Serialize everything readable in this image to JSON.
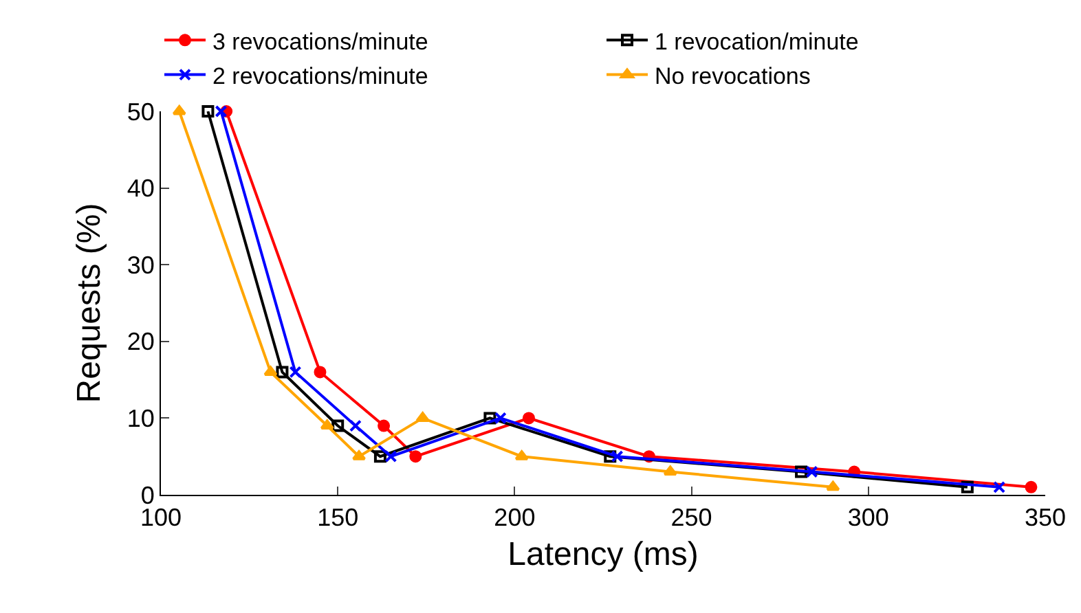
{
  "chart_data": {
    "type": "line",
    "xlabel": "Latency (ms)",
    "ylabel": "Requests (%)",
    "xlim": [
      100,
      350
    ],
    "xticks": [
      100,
      150,
      200,
      250,
      300,
      350
    ],
    "ylim": [
      0,
      50
    ],
    "yticks": [
      0,
      10,
      20,
      30,
      40,
      50
    ],
    "grid": false,
    "legend": "top",
    "line_style": "solid",
    "series": [
      {
        "name": "3 revocations/minute",
        "color": "#ff0000",
        "marker": "circle",
        "x": [
          118.5,
          145,
          163,
          172,
          204,
          238,
          296,
          346
        ],
        "values": [
          50,
          16,
          9,
          5,
          10,
          5,
          3,
          1
        ]
      },
      {
        "name": "1 revocation/minute",
        "color": "#000000",
        "marker": "square",
        "x": [
          113.3,
          134.3,
          150,
          162,
          193,
          227,
          281,
          328
        ],
        "values": [
          50,
          16,
          9,
          5,
          10,
          5,
          3,
          1
        ]
      },
      {
        "name": "2 revocations/minute",
        "color": "#0000ff",
        "marker": "cross",
        "x": [
          117,
          138,
          155,
          165,
          196,
          229,
          284,
          337
        ],
        "values": [
          50,
          16,
          9,
          5,
          10,
          5,
          3,
          1
        ]
      },
      {
        "name": "No revocations",
        "color": "#ffa500",
        "marker": "triangle",
        "x": [
          105.2,
          131,
          147,
          156,
          174,
          202,
          244,
          290
        ],
        "values": [
          50,
          16,
          9,
          5,
          10,
          5,
          3,
          1
        ]
      }
    ]
  }
}
